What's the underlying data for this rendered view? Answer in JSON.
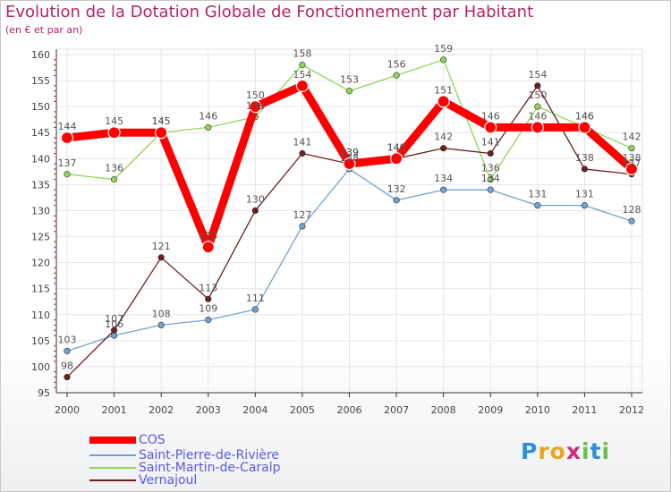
{
  "header": {
    "title": "Evolution de la Dotation Globale de Fonctionnement par Habitant",
    "subtitle": "(en € et par an)"
  },
  "chart_data": {
    "type": "line",
    "title": "Evolution de la Dotation Globale de Fonctionnement par Habitant",
    "subtitle": "(en € et par an)",
    "xlabel": "",
    "ylabel": "",
    "ylim": [
      95,
      160
    ],
    "yticks": [
      95,
      100,
      105,
      110,
      115,
      120,
      125,
      130,
      135,
      140,
      145,
      150,
      155,
      160
    ],
    "grid": true,
    "categories": [
      "2000",
      "2001",
      "2002",
      "2003",
      "2004",
      "2005",
      "2006",
      "2007",
      "2008",
      "2009",
      "2010",
      "2011",
      "2012"
    ],
    "series": [
      {
        "name": "COS",
        "color": "#ff0000",
        "values": [
          144,
          145,
          145,
          123,
          150,
          154,
          139,
          140,
          151,
          146,
          146,
          146,
          138
        ]
      },
      {
        "name": "Saint-Pierre-de-Rivière",
        "color": "#6fa3d6",
        "values": [
          103,
          106,
          108,
          109,
          111,
          127,
          138,
          132,
          134,
          134,
          131,
          131,
          128
        ]
      },
      {
        "name": "Saint-Martin-de-Caralp",
        "color": "#8ed65a",
        "values": [
          137,
          136,
          145,
          146,
          148,
          158,
          153,
          156,
          159,
          136,
          150,
          146,
          142
        ]
      },
      {
        "name": "Vernajoul",
        "color": "#6e1f1f",
        "values": [
          98,
          107,
          121,
          113,
          130,
          141,
          139,
          140,
          142,
          141,
          154,
          138,
          137
        ]
      }
    ],
    "legend_position": "bottom-left"
  },
  "logo": {
    "letters": [
      {
        "ch": "P",
        "color": "#2f8fd8"
      },
      {
        "ch": "r",
        "color": "#e9a61f"
      },
      {
        "ch": "o",
        "color": "#e9a61f"
      },
      {
        "ch": "x",
        "color": "#d6287a"
      },
      {
        "ch": "i",
        "color": "#6cc04a"
      },
      {
        "ch": "t",
        "color": "#2f8fd8"
      },
      {
        "ch": "i",
        "color": "#6cc04a"
      }
    ]
  }
}
